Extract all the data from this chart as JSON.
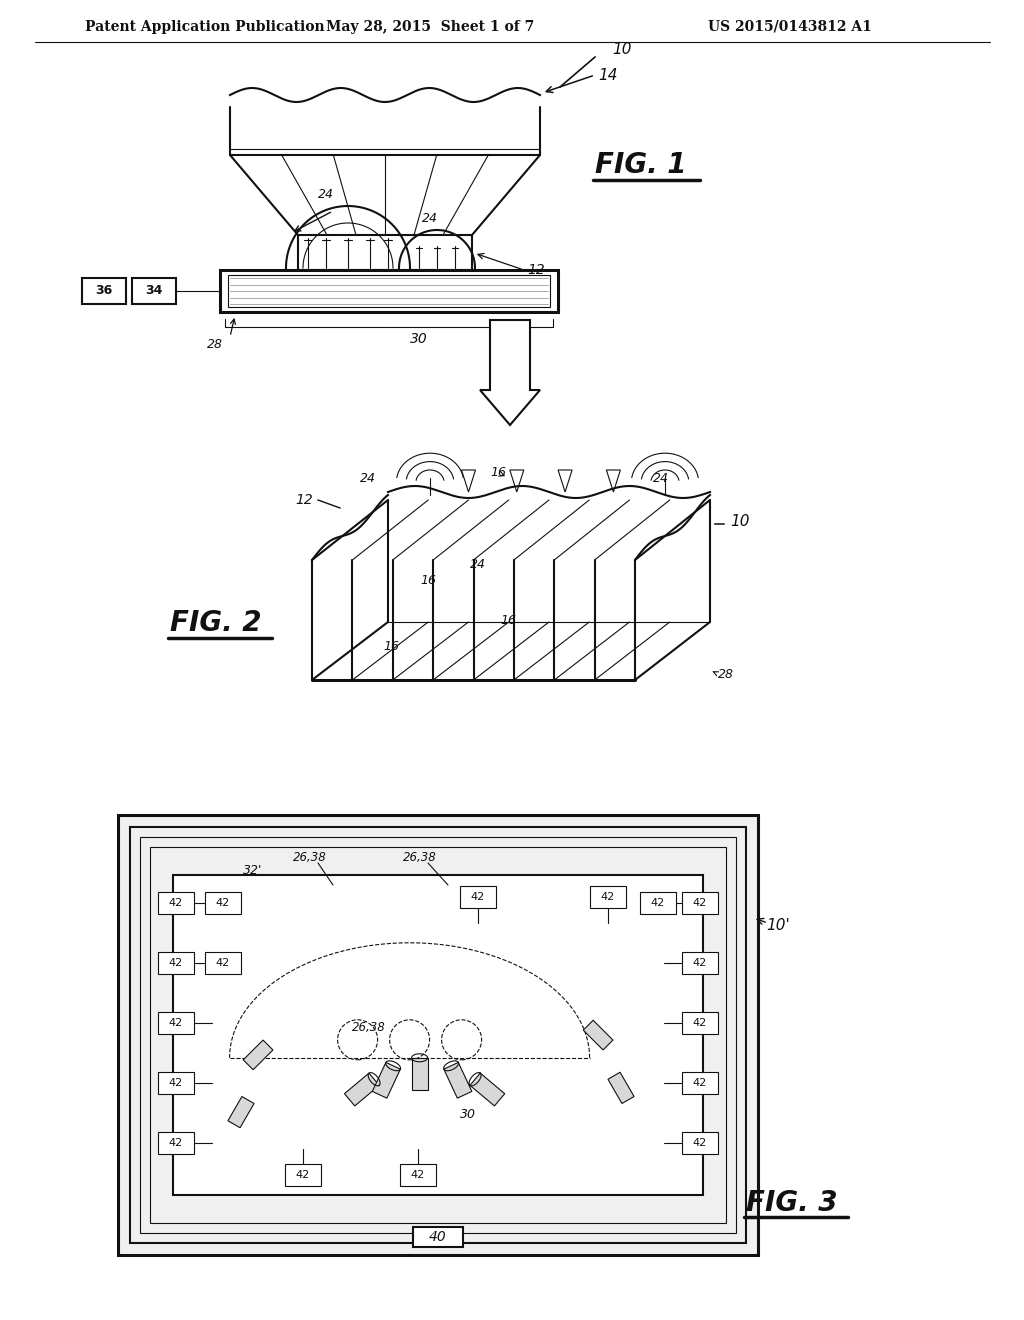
{
  "bg_color": "#ffffff",
  "lc": "#111111",
  "header_left": "Patent Application Publication",
  "header_center": "May 28, 2015  Sheet 1 of 7",
  "header_right": "US 2015/0143812 A1",
  "fig1_label": "FIG. 1",
  "fig2_label": "FIG. 2",
  "fig3_label": "FIG. 3",
  "lw_thin": 0.8,
  "lw_med": 1.5,
  "lw_thick": 2.2
}
